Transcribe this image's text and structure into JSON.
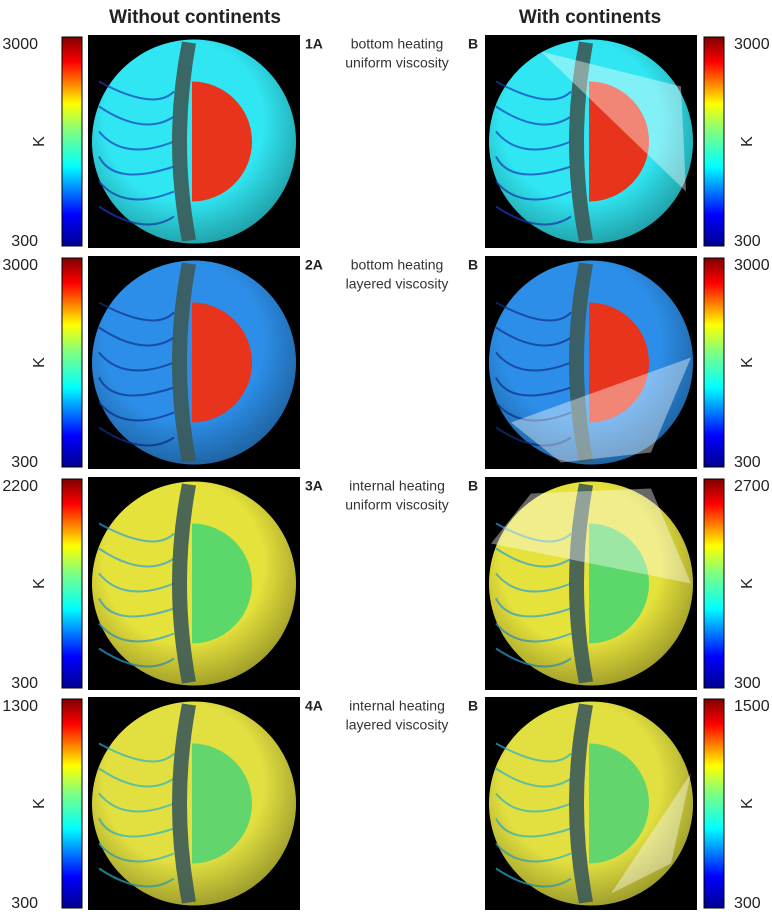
{
  "headers": [
    "Without continents",
    "With continents"
  ],
  "rows": [
    {
      "label_a": "1A",
      "label_b": "B",
      "description": [
        "bottom heating",
        "uniform viscosity"
      ],
      "left_scale": {
        "max": 3000,
        "min": 300,
        "unit": "K"
      },
      "right_scale": {
        "max": 3000,
        "min": 300,
        "unit": "K"
      }
    },
    {
      "label_a": "2A",
      "label_b": "B",
      "description": [
        "bottom heating",
        "layered viscosity"
      ],
      "left_scale": {
        "max": 3000,
        "min": 300,
        "unit": "K"
      },
      "right_scale": {
        "max": 3000,
        "min": 300,
        "unit": "K"
      }
    },
    {
      "label_a": "3A",
      "label_b": "B",
      "description": [
        "internal heating",
        "uniform viscosity"
      ],
      "left_scale": {
        "max": 2200,
        "min": 300,
        "unit": "K"
      },
      "right_scale": {
        "max": 2700,
        "min": 300,
        "unit": "K"
      }
    },
    {
      "label_a": "4A",
      "label_b": "B",
      "description": [
        "internal heating",
        "layered viscosity"
      ],
      "left_scale": {
        "max": 1300,
        "min": 300,
        "unit": "K"
      },
      "right_scale": {
        "max": 1500,
        "min": 300,
        "unit": "K"
      }
    }
  ]
}
